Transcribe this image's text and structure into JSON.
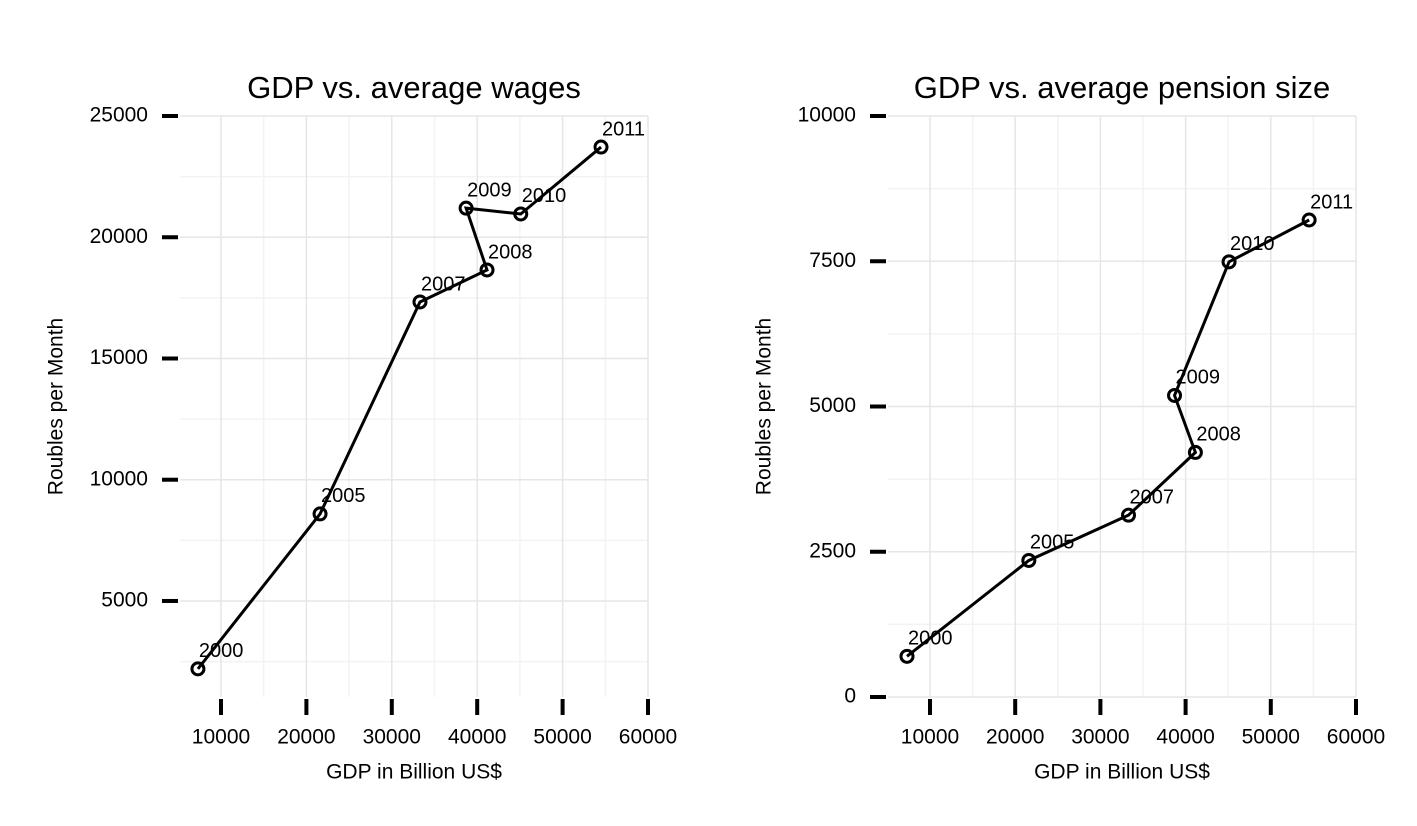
{
  "chart_data": [
    {
      "type": "line",
      "title": "GDP vs. average wages",
      "xlabel": "GDP in Billion US$",
      "ylabel": "Roubles per Month",
      "x": [
        7300,
        21600,
        33300,
        41150,
        38700,
        45100,
        54500
      ],
      "point_labels": [
        "2000",
        "2005",
        "2007",
        "2008",
        "2009",
        "2010",
        "2011"
      ],
      "series": [
        {
          "color": "#000000",
          "values": [
            2200,
            8590,
            17330,
            18650,
            21200,
            20960,
            23720
          ]
        }
      ],
      "xlim": [
        5200,
        60000
      ],
      "xticks": [
        10000,
        20000,
        30000,
        40000,
        50000,
        60000
      ],
      "ylim": [
        1040,
        25000
      ],
      "yticks": [
        5000,
        10000,
        15000,
        20000,
        25000
      ],
      "grid": true
    },
    {
      "type": "line",
      "title": "GDP vs. average pension size",
      "xlabel": "GDP in Billion US$",
      "ylabel": "Roubles per Month",
      "x": [
        7300,
        21600,
        33300,
        41150,
        38700,
        45100,
        54500
      ],
      "point_labels": [
        "2000",
        "2005",
        "2007",
        "2008",
        "2009",
        "2010",
        "2011"
      ],
      "series": [
        {
          "color": "#000000",
          "values": [
            700,
            2350,
            3130,
            4210,
            5190,
            7490,
            8210
          ]
        }
      ],
      "xlim": [
        5070,
        60000
      ],
      "xticks": [
        10000,
        20000,
        30000,
        40000,
        50000,
        60000
      ],
      "ylim": [
        0,
        10000
      ],
      "yticks": [
        0,
        2500,
        5000,
        7500,
        10000
      ],
      "grid": true
    }
  ]
}
